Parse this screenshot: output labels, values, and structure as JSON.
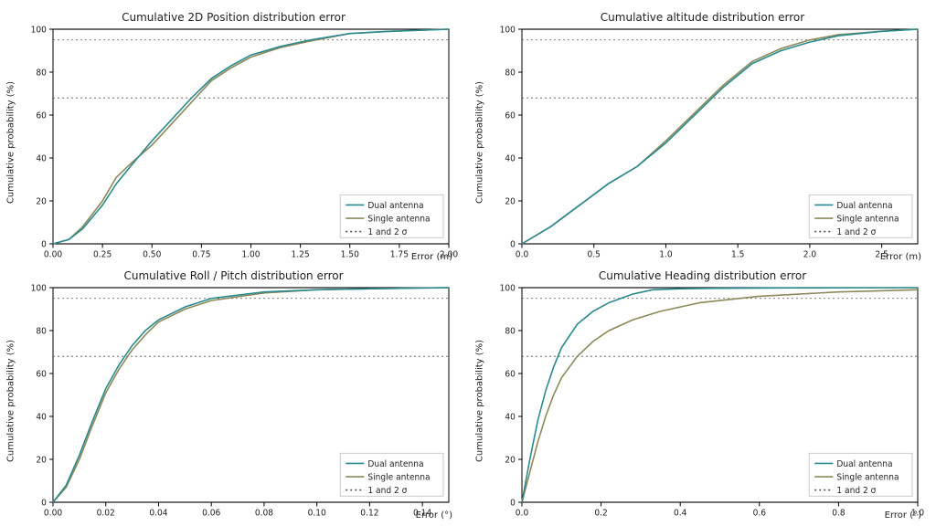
{
  "common": {
    "ylabel": "Cumulative probability (%)",
    "ylim": [
      0,
      100
    ],
    "yticks": [
      0,
      20,
      40,
      60,
      80,
      100
    ],
    "sigma_lines": [
      68,
      95
    ],
    "colors": {
      "dual": "#2a8a8f",
      "single": "#8c8a5a",
      "sigma": "#555555",
      "axis": "#222222",
      "grid": "#dddddd"
    },
    "series_linewidth": 1.6,
    "title_fontsize": 12,
    "label_fontsize": 10,
    "tick_fontsize": 9,
    "font_family": "DejaVu Sans",
    "background": "#ffffff"
  },
  "legend": {
    "items": [
      {
        "key": "dual",
        "label": "Dual antenna",
        "style": "solid",
        "color": "#2a8a8f"
      },
      {
        "key": "single",
        "label": "Single antenna",
        "style": "solid",
        "color": "#8c8a5a"
      },
      {
        "key": "sigma",
        "label": "1 and 2 σ",
        "style": "dash",
        "color": "#555555"
      }
    ],
    "position": "lower-right",
    "box_stroke": "#bbbbbb",
    "box_fill": "#ffffff"
  },
  "panels": [
    {
      "id": "pos2d",
      "title": "Cumulative 2D Position distribution error",
      "xlabel": "Error (m)",
      "xlim": [
        0,
        2.0
      ],
      "xticks": [
        0.0,
        0.25,
        0.5,
        0.75,
        1.0,
        1.25,
        1.5,
        1.75,
        2.0
      ],
      "xtick_fmt": "2",
      "series": {
        "dual": {
          "x": [
            0.0,
            0.08,
            0.15,
            0.25,
            0.32,
            0.4,
            0.5,
            0.6,
            0.7,
            0.8,
            0.9,
            1.0,
            1.15,
            1.3,
            1.5,
            1.7,
            2.0
          ],
          "y": [
            0,
            2,
            7,
            18,
            28,
            37,
            48,
            58,
            68,
            77,
            83,
            88,
            92,
            95,
            98,
            99,
            100
          ]
        },
        "single": {
          "x": [
            0.0,
            0.08,
            0.15,
            0.25,
            0.32,
            0.4,
            0.5,
            0.6,
            0.7,
            0.8,
            0.9,
            1.0,
            1.15,
            1.3,
            1.5,
            1.7,
            2.0
          ],
          "y": [
            0,
            2,
            8,
            20,
            31,
            38,
            46,
            56,
            66,
            76,
            82,
            87,
            91.5,
            94.5,
            98,
            99,
            100
          ]
        }
      }
    },
    {
      "id": "alt",
      "title": "Cumulative altitude distribution error",
      "xlabel": "Error (m)",
      "xlim": [
        0,
        2.75
      ],
      "xticks": [
        0.0,
        0.5,
        1.0,
        1.5,
        2.0,
        2.5
      ],
      "xtick_fmt": "1",
      "series": {
        "dual": {
          "x": [
            0.0,
            0.2,
            0.4,
            0.6,
            0.8,
            1.0,
            1.2,
            1.4,
            1.6,
            1.8,
            2.0,
            2.2,
            2.5,
            2.75
          ],
          "y": [
            0,
            8,
            18,
            28,
            36,
            47,
            60,
            73,
            84,
            90,
            94,
            97,
            99,
            100
          ]
        },
        "single": {
          "x": [
            0.0,
            0.2,
            0.4,
            0.6,
            0.8,
            1.0,
            1.2,
            1.4,
            1.6,
            1.8,
            2.0,
            2.2,
            2.5,
            2.75
          ],
          "y": [
            0,
            8,
            18,
            28,
            36,
            48,
            61,
            74,
            85,
            91,
            95,
            97.5,
            99,
            100
          ]
        }
      }
    },
    {
      "id": "rollpitch",
      "title": "Cumulative Roll / Pitch distribution error",
      "xlabel": "Error (°)",
      "xlim": [
        0,
        0.15
      ],
      "xticks": [
        0.0,
        0.02,
        0.04,
        0.06,
        0.08,
        0.1,
        0.12,
        0.14
      ],
      "xtick_fmt": "2",
      "series": {
        "dual": {
          "x": [
            0.0,
            0.005,
            0.01,
            0.015,
            0.02,
            0.025,
            0.03,
            0.035,
            0.04,
            0.05,
            0.06,
            0.08,
            0.1,
            0.12,
            0.15
          ],
          "y": [
            0,
            8,
            22,
            38,
            53,
            64,
            73,
            80,
            85,
            91,
            95,
            98,
            99,
            99.5,
            100
          ]
        },
        "single": {
          "x": [
            0.0,
            0.005,
            0.01,
            0.015,
            0.02,
            0.025,
            0.03,
            0.035,
            0.04,
            0.05,
            0.06,
            0.08,
            0.1,
            0.12,
            0.15
          ],
          "y": [
            0,
            7,
            20,
            36,
            51,
            62,
            71,
            78,
            84,
            90,
            94,
            97.5,
            99,
            99.5,
            100
          ]
        }
      }
    },
    {
      "id": "heading",
      "title": "Cumulative Heading distribution error",
      "xlabel": "Error (°)",
      "xlim": [
        0,
        1.0
      ],
      "xticks": [
        0.0,
        0.2,
        0.4,
        0.6,
        0.8,
        1.0
      ],
      "xtick_fmt": "1",
      "series": {
        "dual": {
          "x": [
            0.0,
            0.02,
            0.04,
            0.06,
            0.08,
            0.1,
            0.14,
            0.18,
            0.22,
            0.28,
            0.33,
            0.4,
            0.5,
            0.7,
            1.0
          ],
          "y": [
            0,
            20,
            38,
            52,
            63,
            72,
            83,
            89,
            93,
            97,
            99,
            99.5,
            99.7,
            99.9,
            100
          ]
        },
        "single": {
          "x": [
            0.0,
            0.02,
            0.04,
            0.06,
            0.08,
            0.1,
            0.14,
            0.18,
            0.22,
            0.28,
            0.35,
            0.45,
            0.6,
            0.8,
            1.0
          ],
          "y": [
            0,
            14,
            28,
            40,
            50,
            58,
            68,
            75,
            80,
            85,
            89,
            93,
            96,
            98,
            99
          ]
        }
      }
    }
  ]
}
